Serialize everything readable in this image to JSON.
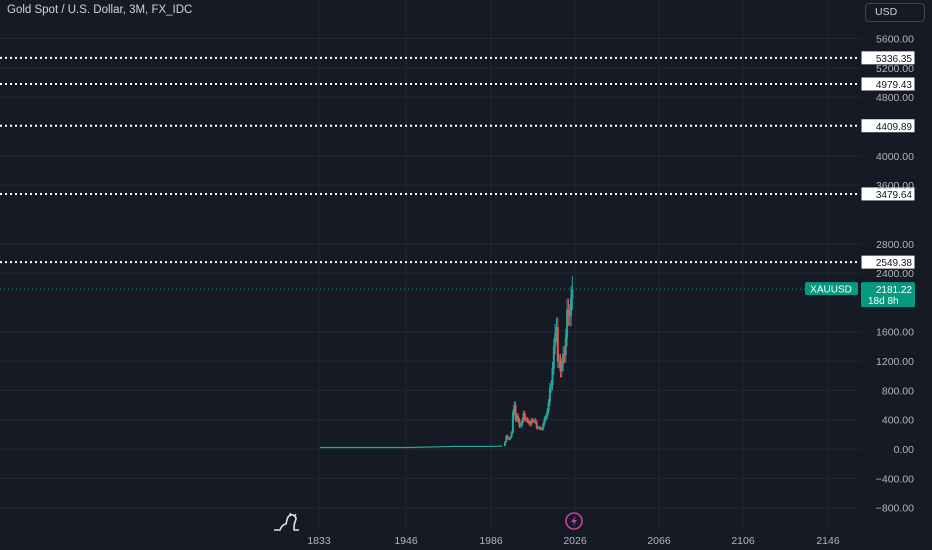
{
  "header": {
    "title": "Gold Spot / U.S. Dollar, 3M, FX_IDC",
    "currency_button": "USD"
  },
  "icons": {
    "logo": "tradingview-dino-icon",
    "event": "lightning-event-icon"
  },
  "colors": {
    "background": "#161a25",
    "grid": "#232733",
    "up": "#26a69a",
    "down": "#ef5350",
    "level_line": "#ffffff",
    "current_price": "#089981",
    "event_icon": "#c342a2"
  },
  "chart_data": {
    "type": "candlestick",
    "symbol": "XAUUSD",
    "title": "Gold Spot / U.S. Dollar, 3M, FX_IDC",
    "currency": "USD",
    "x_ticks": [
      "1833",
      "1946",
      "1986",
      "2026",
      "2066",
      "2106",
      "2146"
    ],
    "y_ticks": [
      5600,
      5200,
      4800,
      4000,
      3600,
      2800,
      2400,
      1600,
      1200,
      800,
      400,
      0,
      -400,
      -800
    ],
    "ylim": [
      -900,
      5850
    ],
    "grid": true,
    "level_lines": [
      5336.35,
      4979.43,
      4409.89,
      3479.64,
      2549.38
    ],
    "current_price": {
      "label": "XAUUSD",
      "value": 2181.22,
      "countdown": "18d 8h"
    },
    "series": [
      {
        "x": [
          1833,
          1880,
          1900,
          1935,
          1946,
          1960,
          1968,
          1971,
          1973,
          1974,
          1975,
          1976,
          1977,
          1978,
          1979,
          1980,
          1981,
          1982,
          1983,
          1984,
          1985,
          1986,
          1987,
          1988,
          1989,
          1990,
          1991,
          1992,
          1993,
          1994,
          1995,
          1996,
          1997,
          1998,
          1999,
          2000,
          2001,
          2002,
          2003,
          2004,
          2005,
          2006,
          2007,
          2008,
          2009,
          2010,
          2011,
          2012,
          2013,
          2014,
          2015,
          2016,
          2017,
          2018,
          2019,
          2020,
          2021,
          2022,
          2023,
          2024
        ],
        "values": [
          20,
          20,
          20,
          35,
          35,
          35,
          38,
          42,
          97,
          180,
          140,
          130,
          165,
          225,
          500,
          600,
          400,
          450,
          390,
          310,
          330,
          390,
          485,
          410,
          400,
          385,
          360,
          335,
          390,
          385,
          387,
          370,
          290,
          290,
          290,
          275,
          275,
          345,
          415,
          440,
          515,
          635,
          835,
          870,
          1100,
          1400,
          1580,
          1660,
          1200,
          1200,
          1060,
          1150,
          1300,
          1280,
          1520,
          1900,
          1830,
          1820,
          2060,
          2181
        ]
      }
    ]
  }
}
